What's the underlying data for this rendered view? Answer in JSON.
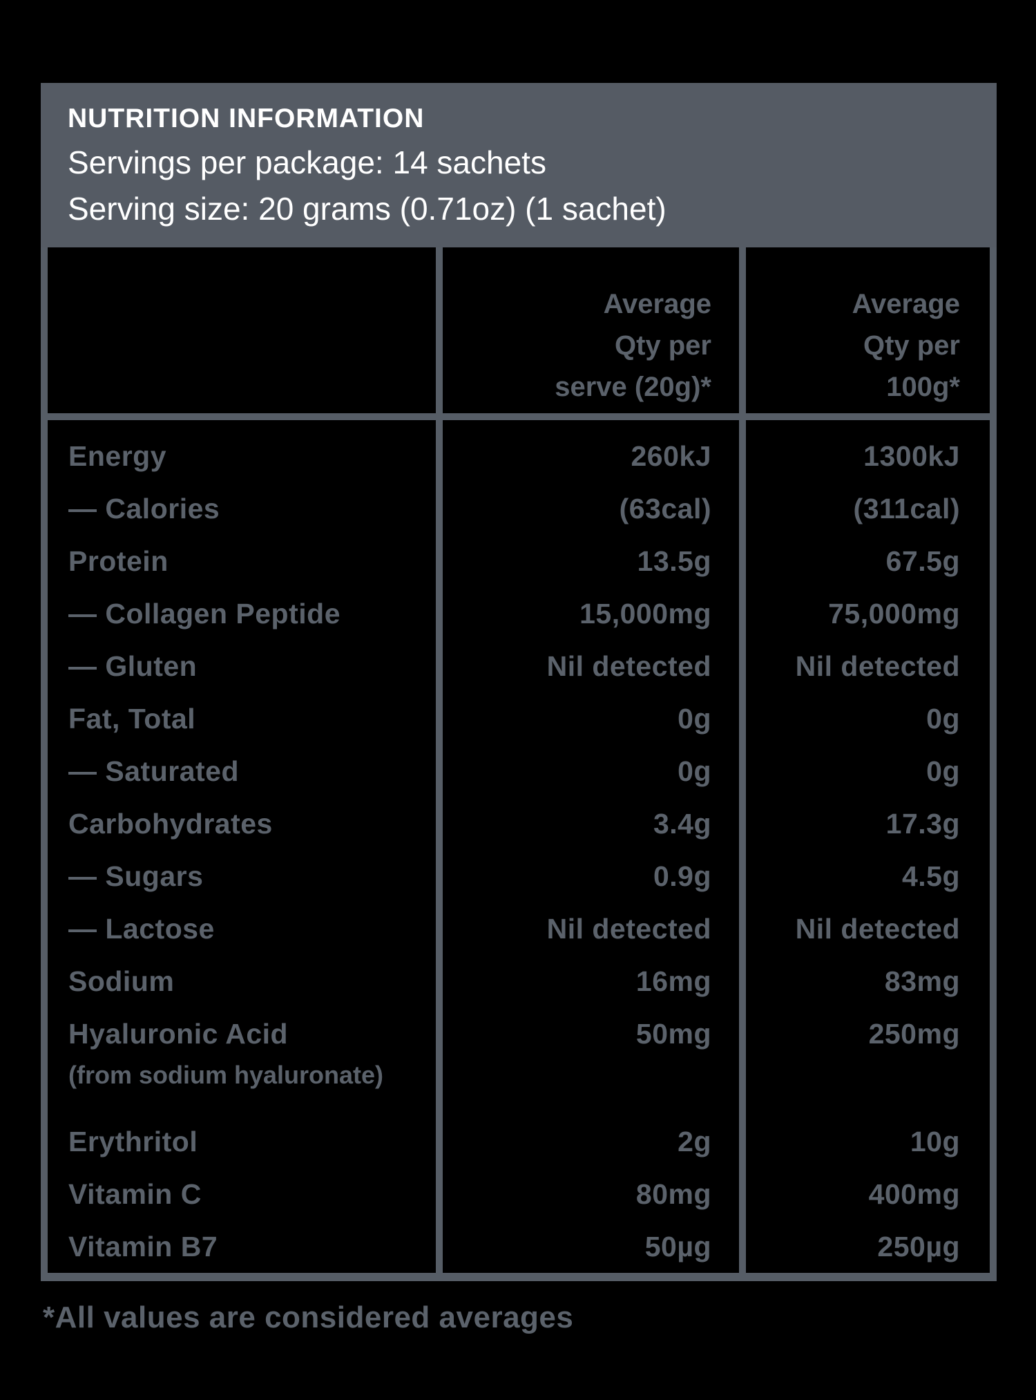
{
  "header": {
    "title": "NUTRITION INFORMATION",
    "servings": "Servings per package: 14 sachets",
    "serving_size": "Serving size: 20 grams (0.71oz) (1 sachet)"
  },
  "table": {
    "columns": [
      {
        "lines": [
          "Average",
          "Qty per",
          "serve (20g)*"
        ]
      },
      {
        "lines": [
          "Average",
          "Qty per",
          "100g*"
        ]
      }
    ],
    "rows": [
      {
        "label": "Energy",
        "serve": "260kJ",
        "per100": "1300kJ"
      },
      {
        "label": "— Calories",
        "serve": "(63cal)",
        "per100": "(311cal)"
      },
      {
        "label": "Protein",
        "serve": "13.5g",
        "per100": "67.5g"
      },
      {
        "label": "— Collagen Peptide",
        "serve": "15,000mg",
        "per100": "75,000mg"
      },
      {
        "label": "— Gluten",
        "serve": "Nil detected",
        "per100": "Nil detected"
      },
      {
        "label": "Fat, Total",
        "serve": "0g",
        "per100": "0g"
      },
      {
        "label": "— Saturated",
        "serve": "0g",
        "per100": "0g"
      },
      {
        "label": "Carbohydrates",
        "serve": "3.4g",
        "per100": "17.3g"
      },
      {
        "label": "— Sugars",
        "serve": "0.9g",
        "per100": "4.5g"
      },
      {
        "label": "— Lactose",
        "serve": "Nil detected",
        "per100": "Nil detected"
      },
      {
        "label": "Sodium",
        "serve": "16mg",
        "per100": "83mg"
      },
      {
        "label": "Hyaluronic Acid",
        "subnote": "(from sodium hyaluronate)",
        "serve": "50mg",
        "per100": "250mg"
      },
      {
        "label": "Erythritol",
        "serve": "2g",
        "per100": "10g",
        "gap_before": true
      },
      {
        "label": "Vitamin C",
        "serve": "80mg",
        "per100": "400mg"
      },
      {
        "label": "Vitamin B7",
        "serve": "50µg",
        "per100": "250µg"
      }
    ]
  },
  "footer": {
    "note": "*All values are considered averages"
  },
  "colors": {
    "background": "#000000",
    "panel_gray": "#555b64",
    "border_gray": "#565d66",
    "text_gray": "#5b626b",
    "header_text": "#ffffff"
  }
}
